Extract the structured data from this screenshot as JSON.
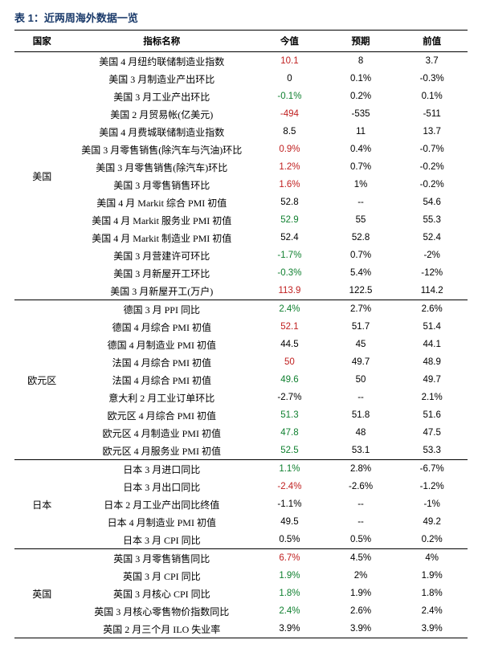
{
  "title": "表 1：近两周海外数据一览",
  "columns": {
    "country": "国家",
    "indicator": "指标名称",
    "current": "今值",
    "forecast": "预期",
    "previous": "前值"
  },
  "groups": [
    {
      "country": "美国",
      "rows": [
        {
          "indicator": "美国 4 月纽约联储制造业指数",
          "current": "10.1",
          "cclass": "pos",
          "forecast": "8",
          "previous": "3.7"
        },
        {
          "indicator": "美国 3 月制造业产出环比",
          "current": "0",
          "cclass": "",
          "forecast": "0.1%",
          "previous": "-0.3%"
        },
        {
          "indicator": "美国 3 月工业产出环比",
          "current": "-0.1%",
          "cclass": "neg",
          "forecast": "0.2%",
          "previous": "0.1%"
        },
        {
          "indicator": "美国 2 月贸易帐(亿美元)",
          "current": "-494",
          "cclass": "pos",
          "forecast": "-535",
          "previous": "-511"
        },
        {
          "indicator": "美国 4 月费城联储制造业指数",
          "current": "8.5",
          "cclass": "",
          "forecast": "11",
          "previous": "13.7"
        },
        {
          "indicator": "美国 3 月零售销售(除汽车与汽油)环比",
          "current": "0.9%",
          "cclass": "pos",
          "forecast": "0.4%",
          "previous": "-0.7%"
        },
        {
          "indicator": "美国 3 月零售销售(除汽车)环比",
          "current": "1.2%",
          "cclass": "pos",
          "forecast": "0.7%",
          "previous": "-0.2%"
        },
        {
          "indicator": "美国 3 月零售销售环比",
          "current": "1.6%",
          "cclass": "pos",
          "forecast": "1%",
          "previous": "-0.2%"
        },
        {
          "indicator": "美国 4 月 Markit 综合 PMI 初值",
          "current": "52.8",
          "cclass": "",
          "forecast": "--",
          "previous": "54.6"
        },
        {
          "indicator": "美国 4 月 Markit 服务业 PMI 初值",
          "current": "52.9",
          "cclass": "neg",
          "forecast": "55",
          "previous": "55.3"
        },
        {
          "indicator": "美国 4 月 Markit 制造业 PMI 初值",
          "current": "52.4",
          "cclass": "",
          "forecast": "52.8",
          "previous": "52.4"
        },
        {
          "indicator": "美国 3 月营建许可环比",
          "current": "-1.7%",
          "cclass": "neg",
          "forecast": "0.7%",
          "previous": "-2%"
        },
        {
          "indicator": "美国 3 月新屋开工环比",
          "current": "-0.3%",
          "cclass": "neg",
          "forecast": "5.4%",
          "previous": "-12%"
        },
        {
          "indicator": "美国 3 月新屋开工(万户)",
          "current": "113.9",
          "cclass": "pos",
          "forecast": "122.5",
          "previous": "114.2"
        }
      ]
    },
    {
      "country": "欧元区",
      "rows": [
        {
          "indicator": "德国 3 月 PPI 同比",
          "current": "2.4%",
          "cclass": "neg",
          "forecast": "2.7%",
          "previous": "2.6%"
        },
        {
          "indicator": "德国 4 月综合 PMI 初值",
          "current": "52.1",
          "cclass": "pos",
          "forecast": "51.7",
          "previous": "51.4"
        },
        {
          "indicator": "德国 4 月制造业 PMI 初值",
          "current": "44.5",
          "cclass": "",
          "forecast": "45",
          "previous": "44.1"
        },
        {
          "indicator": "法国 4 月综合 PMI 初值",
          "current": "50",
          "cclass": "pos",
          "forecast": "49.7",
          "previous": "48.9"
        },
        {
          "indicator": "法国 4 月综合 PMI 初值",
          "current": "49.6",
          "cclass": "neg",
          "forecast": "50",
          "previous": "49.7"
        },
        {
          "indicator": "意大利 2 月工业订单环比",
          "current": "-2.7%",
          "cclass": "",
          "forecast": "--",
          "previous": "2.1%"
        },
        {
          "indicator": "欧元区 4 月综合 PMI 初值",
          "current": "51.3",
          "cclass": "neg",
          "forecast": "51.8",
          "previous": "51.6"
        },
        {
          "indicator": "欧元区 4 月制造业 PMI 初值",
          "current": "47.8",
          "cclass": "neg",
          "forecast": "48",
          "previous": "47.5"
        },
        {
          "indicator": "欧元区 4 月服务业 PMI 初值",
          "current": "52.5",
          "cclass": "neg",
          "forecast": "53.1",
          "previous": "53.3"
        }
      ]
    },
    {
      "country": "日本",
      "rows": [
        {
          "indicator": "日本 3 月进口同比",
          "current": "1.1%",
          "cclass": "neg",
          "forecast": "2.8%",
          "previous": "-6.7%"
        },
        {
          "indicator": "日本 3 月出口同比",
          "current": "-2.4%",
          "cclass": "pos",
          "forecast": "-2.6%",
          "previous": "-1.2%"
        },
        {
          "indicator": "日本 2 月工业产出同比终值",
          "current": "-1.1%",
          "cclass": "",
          "forecast": "--",
          "previous": "-1%"
        },
        {
          "indicator": "日本 4 月制造业 PMI 初值",
          "current": "49.5",
          "cclass": "",
          "forecast": "--",
          "previous": "49.2"
        },
        {
          "indicator": "日本 3 月 CPI 同比",
          "current": "0.5%",
          "cclass": "",
          "forecast": "0.5%",
          "previous": "0.2%"
        }
      ]
    },
    {
      "country": "英国",
      "rows": [
        {
          "indicator": "英国 3 月零售销售同比",
          "current": "6.7%",
          "cclass": "pos",
          "forecast": "4.5%",
          "previous": "4%"
        },
        {
          "indicator": "英国 3 月 CPI 同比",
          "current": "1.9%",
          "cclass": "neg",
          "forecast": "2%",
          "previous": "1.9%"
        },
        {
          "indicator": "英国 3 月核心 CPI 同比",
          "current": "1.8%",
          "cclass": "neg",
          "forecast": "1.9%",
          "previous": "1.8%"
        },
        {
          "indicator": "英国 3 月核心零售物价指数同比",
          "current": "2.4%",
          "cclass": "neg",
          "forecast": "2.6%",
          "previous": "2.4%"
        },
        {
          "indicator": "英国 2 月三个月 ILO 失业率",
          "current": "3.9%",
          "cclass": "",
          "forecast": "3.9%",
          "previous": "3.9%"
        }
      ]
    }
  ]
}
